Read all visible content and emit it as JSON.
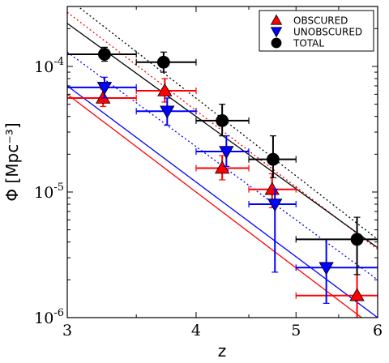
{
  "chart_data": {
    "type": "scatter",
    "xlabel": "z",
    "ylabel": "Φ [Mpc⁻³]",
    "xscale": "log",
    "yscale": "log",
    "xlim": [
      3,
      6
    ],
    "ylim": [
      1e-06,
      0.0003
    ],
    "x_ticks": [
      {
        "value": 3,
        "label": "3"
      },
      {
        "value": 4,
        "label": "4"
      },
      {
        "value": 5,
        "label": "5"
      },
      {
        "value": 6,
        "label": "6"
      }
    ],
    "y_ticks": [
      {
        "value": 1e-06,
        "label": "10",
        "exp": "-6"
      },
      {
        "value": 1e-05,
        "label": "10",
        "exp": "-5"
      },
      {
        "value": 0.0001,
        "label": "10",
        "exp": "-4"
      }
    ],
    "legend_position": "top-right",
    "series": [
      {
        "name": "OBSCURED",
        "color": "#ff0000",
        "marker": "triangle-up",
        "points": [
          {
            "x": 3.25,
            "y": 5.6e-05,
            "xlo": 3.0,
            "xhi": 3.5,
            "ylo": 4.8e-05,
            "yhi": 6.6e-05
          },
          {
            "x": 3.73,
            "y": 6.4e-05,
            "xlo": 3.5,
            "xhi": 4.0,
            "ylo": 5.2e-05,
            "yhi": 8e-05
          },
          {
            "x": 4.24,
            "y": 1.55e-05,
            "xlo": 4.0,
            "xhi": 4.5,
            "ylo": 1.25e-05,
            "yhi": 1.95e-05
          },
          {
            "x": 4.74,
            "y": 1.05e-05,
            "xlo": 4.5,
            "xhi": 5.0,
            "ylo": 7.5e-06,
            "yhi": 1.4e-05
          },
          {
            "x": 5.73,
            "y": 1.5e-06,
            "xlo": 5.0,
            "xhi": 6.0,
            "ylo": 1e-06,
            "yhi": 2.2e-06
          }
        ],
        "fit_solid": [
          [
            3.0,
            6e-05
          ],
          [
            6.0,
            8e-07
          ]
        ],
        "fit_dotted": [
          [
            3.0,
            0.00027
          ],
          [
            6.0,
            3.5e-06
          ]
        ]
      },
      {
        "name": "UNOBSCURED",
        "color": "#0000ff",
        "marker": "triangle-down",
        "points": [
          {
            "x": 3.26,
            "y": 6.8e-05,
            "xlo": 3.0,
            "xhi": 3.5,
            "ylo": 5.6e-05,
            "yhi": 8.2e-05
          },
          {
            "x": 3.75,
            "y": 4.4e-05,
            "xlo": 3.5,
            "xhi": 4.0,
            "ylo": 3.4e-05,
            "yhi": 5.6e-05
          },
          {
            "x": 4.28,
            "y": 2.1e-05,
            "xlo": 4.0,
            "xhi": 4.5,
            "ylo": 1.6e-05,
            "yhi": 2.8e-05
          },
          {
            "x": 4.77,
            "y": 8e-06,
            "xlo": 4.5,
            "xhi": 5.0,
            "ylo": 2.3e-06,
            "yhi": 1.05e-05
          },
          {
            "x": 5.35,
            "y": 2.5e-06,
            "xlo": 5.0,
            "xhi": 6.0,
            "ylo": 1.3e-06,
            "yhi": 4.2e-06
          }
        ],
        "fit_solid": [
          [
            3.0,
            7e-05
          ],
          [
            6.0,
            1e-06
          ]
        ],
        "fit_dotted": [
          [
            3.0,
            0.00013
          ],
          [
            6.0,
            2e-06
          ]
        ]
      },
      {
        "name": "TOTAL",
        "color": "#000000",
        "marker": "circle",
        "points": [
          {
            "x": 3.26,
            "y": 0.000125,
            "xlo": 3.0,
            "xhi": 3.5,
            "ylo": 0.00011,
            "yhi": 0.000142
          },
          {
            "x": 3.72,
            "y": 0.000108,
            "xlo": 3.5,
            "xhi": 4.0,
            "ylo": 9e-05,
            "yhi": 0.00013
          },
          {
            "x": 4.24,
            "y": 3.7e-05,
            "xlo": 4.0,
            "xhi": 4.5,
            "ylo": 2.8e-05,
            "yhi": 5e-05
          },
          {
            "x": 4.75,
            "y": 1.82e-05,
            "xlo": 4.5,
            "xhi": 5.0,
            "ylo": 1.3e-05,
            "yhi": 2.8e-05
          },
          {
            "x": 5.73,
            "y": 4.2e-06,
            "xlo": 5.0,
            "xhi": 6.0,
            "ylo": 2.2e-06,
            "yhi": 6.3e-06
          }
        ],
        "fit_solid": [
          [
            3.0,
            0.00022
          ],
          [
            6.0,
            3.6e-06
          ]
        ],
        "fit_dotted": [
          [
            3.0,
            0.00035
          ],
          [
            6.0,
            4.2e-06
          ]
        ]
      }
    ]
  }
}
